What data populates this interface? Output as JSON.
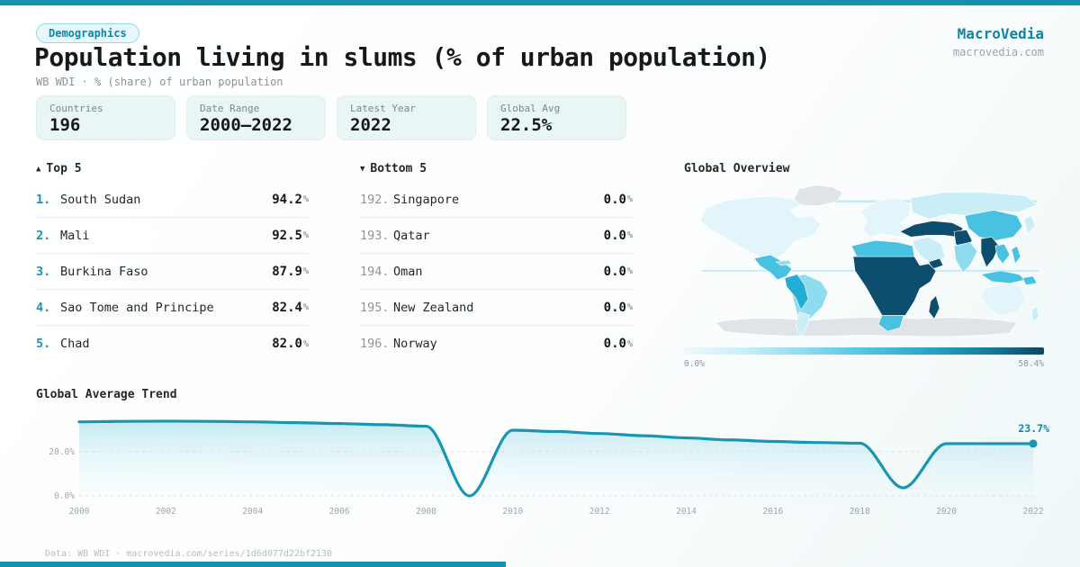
{
  "theme": {
    "accent": "#1292ae",
    "accent_dark": "#0f86a6",
    "text_dark": "#16191b",
    "card_bg": "#e9f6f5",
    "divider": "#e6eef1",
    "grid_line": "#d7e2e6",
    "chart_line": "#1796b4",
    "axis_text": "#9da6ad",
    "map_gray": "#dfe4e9",
    "map_scale": [
      "#eef9fc",
      "#c9eef7",
      "#8fdcee",
      "#52c6e3",
      "#28a8c9",
      "#17809f",
      "#0c4763"
    ]
  },
  "header": {
    "badge": "Demographics",
    "title": "Population living in slums (% of urban population)",
    "subtitle": "WB WDI · % (share) of urban population",
    "brand": "MacroVedia",
    "brand_domain": "macrovedia.com"
  },
  "stats": [
    {
      "label": "Countries",
      "value": "196"
    },
    {
      "label": "Date Range",
      "value": "2000–2022"
    },
    {
      "label": "Latest Year",
      "value": "2022"
    },
    {
      "label": "Global Avg",
      "value": "22.5%"
    }
  ],
  "top5": {
    "arrow": "▲",
    "title": "Top 5",
    "rows": [
      {
        "rank": "1.",
        "name": "South Sudan",
        "value": "94.2",
        "unit": "%"
      },
      {
        "rank": "2.",
        "name": "Mali",
        "value": "92.5",
        "unit": "%"
      },
      {
        "rank": "3.",
        "name": "Burkina Faso",
        "value": "87.9",
        "unit": "%"
      },
      {
        "rank": "4.",
        "name": "Sao Tome and Principe",
        "value": "82.4",
        "unit": "%"
      },
      {
        "rank": "5.",
        "name": "Chad",
        "value": "82.0",
        "unit": "%"
      }
    ]
  },
  "bottom5": {
    "arrow": "▼",
    "title": "Bottom 5",
    "rows": [
      {
        "rank": "192.",
        "name": "Singapore",
        "value": "0.0",
        "unit": "%"
      },
      {
        "rank": "193.",
        "name": "Qatar",
        "value": "0.0",
        "unit": "%"
      },
      {
        "rank": "194.",
        "name": "Oman",
        "value": "0.0",
        "unit": "%"
      },
      {
        "rank": "195.",
        "name": "New Zealand",
        "value": "0.0",
        "unit": "%"
      },
      {
        "rank": "196.",
        "name": "Norway",
        "value": "0.0",
        "unit": "%"
      }
    ]
  },
  "map": {
    "title": "Global Overview",
    "legend_min": "0.0%",
    "legend_max": "58.4%"
  },
  "chart_data": {
    "type": "area",
    "title": "Global Average Trend",
    "x": [
      2000,
      2001,
      2002,
      2003,
      2004,
      2005,
      2006,
      2007,
      2008,
      2009,
      2010,
      2011,
      2012,
      2013,
      2014,
      2015,
      2016,
      2017,
      2018,
      2019,
      2020,
      2021,
      2022
    ],
    "values": [
      33.6,
      33.8,
      33.9,
      33.8,
      33.6,
      33.2,
      32.8,
      32.3,
      31.6,
      0.0,
      29.8,
      29.2,
      28.3,
      27.3,
      26.3,
      25.4,
      24.7,
      24.2,
      23.9,
      3.7,
      23.7,
      23.7,
      23.7
    ],
    "end_label": "23.7%",
    "yticks": [
      {
        "label": "20.0%",
        "value": 20
      },
      {
        "label": "0.0%",
        "value": 0
      }
    ],
    "xticks": [
      2000,
      2002,
      2004,
      2006,
      2008,
      2010,
      2012,
      2014,
      2016,
      2018,
      2020,
      2022
    ],
    "ylim": [
      0,
      36
    ],
    "xlabel": "",
    "ylabel": "",
    "grid": "dashed-horizontal",
    "legend_position": "none"
  },
  "footer": {
    "text": "Data: WB WDI · macrovedia.com/series/1d6d077d22bf2130"
  }
}
